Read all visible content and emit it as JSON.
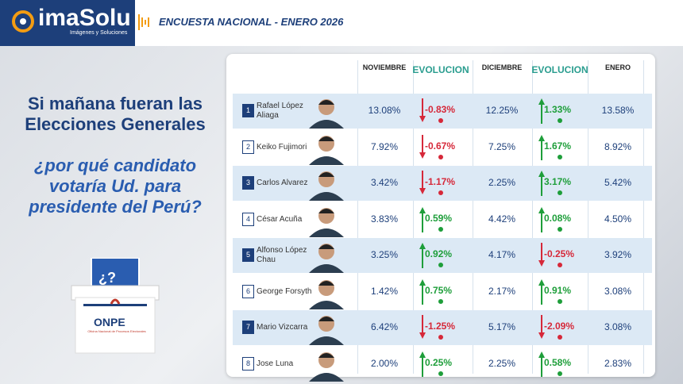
{
  "header": {
    "logo": "imaSolu",
    "logo_subtitle": "Imágenes y Soluciones",
    "title": "ENCUESTA NACIONAL - ENERO 2026"
  },
  "question": {
    "line1": "Si mañana fueran las Elecciones Generales",
    "line2": "¿por qué candidato votaría Ud. para presidente del Perú?"
  },
  "ballot": {
    "mark": "¿?",
    "label": "ONPE",
    "subtitle": "Oficina Nacional de Procesos Electorales"
  },
  "table": {
    "columns": [
      "NOVIEMBRE",
      "EVOLUCION",
      "DICIEMBRE",
      "EVOLUCION",
      "ENERO"
    ],
    "rows": [
      [
        "1",
        "Rafael López Aliaga",
        "13.08%",
        "-0.83%",
        "12.25%",
        "1.33%",
        "13.58%"
      ],
      [
        "2",
        "Keiko Fujimori",
        "7.92%",
        "-0.67%",
        "7.25%",
        "1.67%",
        "8.92%"
      ],
      [
        "3",
        "Carlos Alvarez",
        "3.42%",
        "-1.17%",
        "2.25%",
        "3.17%",
        "5.42%"
      ],
      [
        "4",
        "César Acuña",
        "3.83%",
        "0.59%",
        "4.42%",
        "0.08%",
        "4.50%"
      ],
      [
        "5",
        "Alfonso López Chau",
        "3.25%",
        "0.92%",
        "4.17%",
        "-0.25%",
        "3.92%"
      ],
      [
        "6",
        "George Forsyth",
        "1.42%",
        "0.75%",
        "2.17%",
        "0.91%",
        "3.08%"
      ],
      [
        "7",
        "Mario Vizcarra",
        "6.42%",
        "-1.25%",
        "5.17%",
        "-2.09%",
        "3.08%"
      ],
      [
        "8",
        "Jose Luna",
        "2.00%",
        "0.25%",
        "2.25%",
        "0.58%",
        "2.83%"
      ]
    ]
  }
}
